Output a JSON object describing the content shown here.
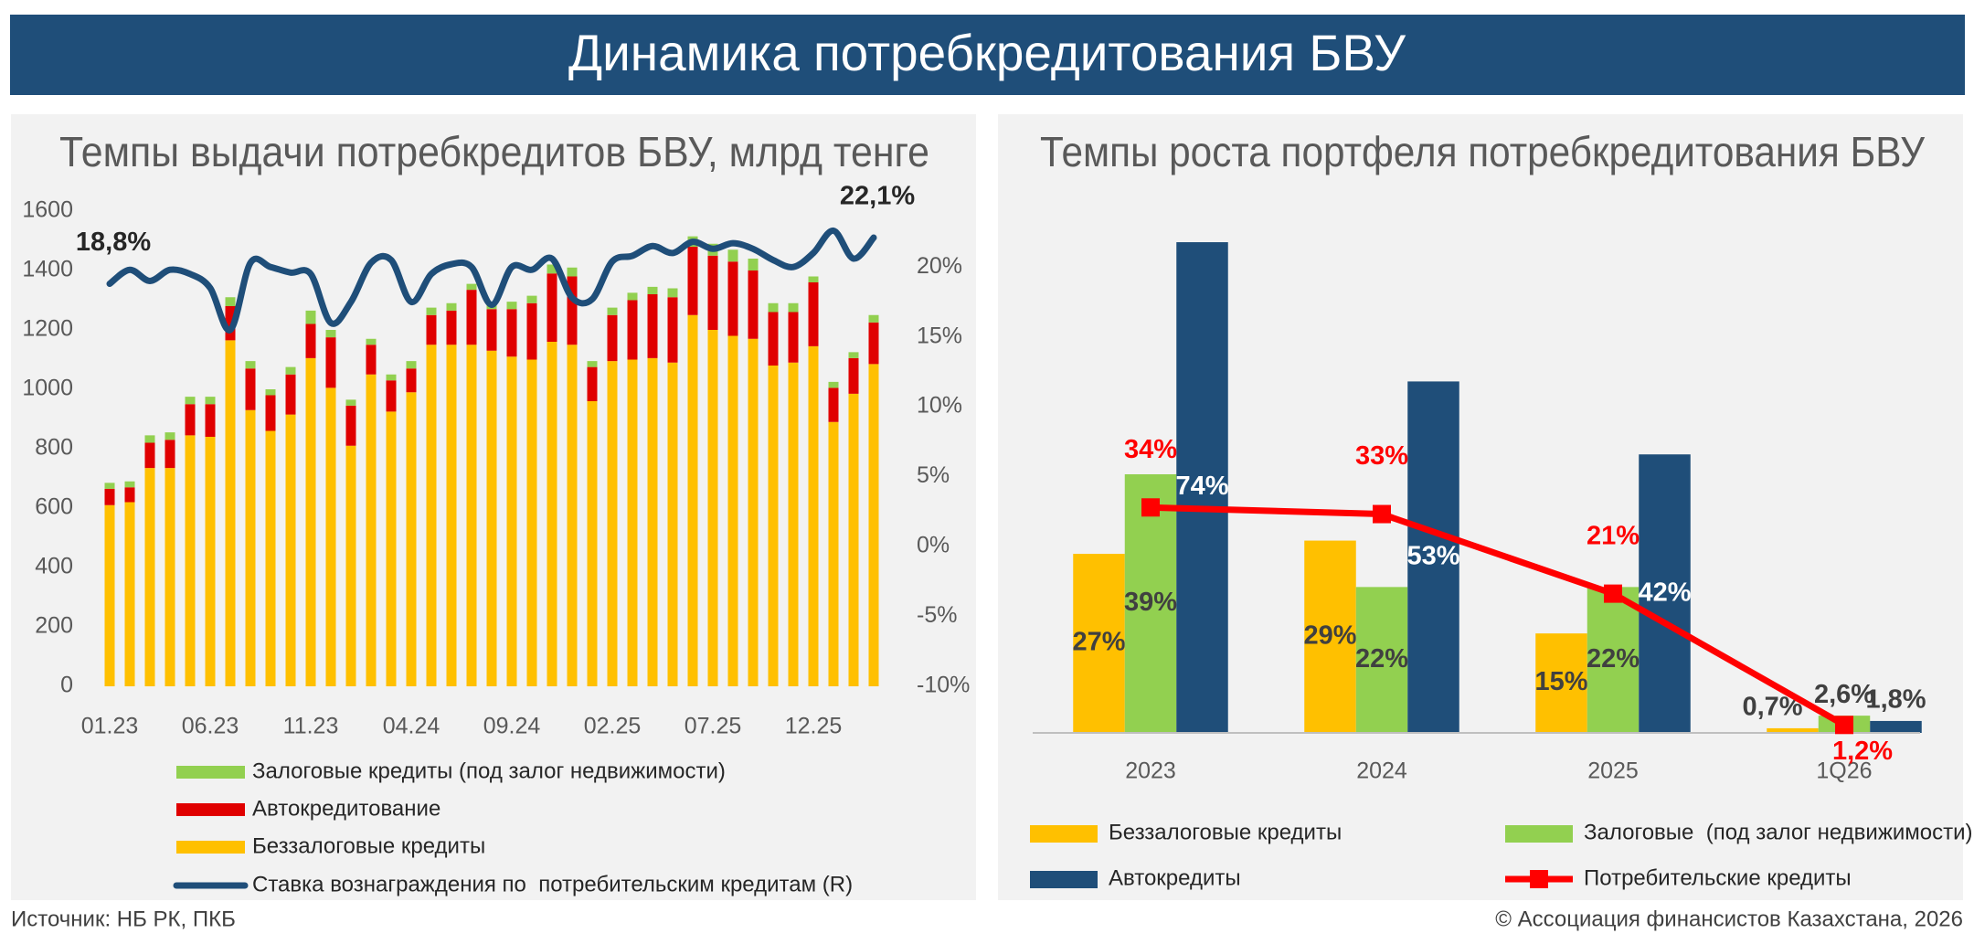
{
  "title": "Динамика потребкредитования БВУ",
  "source": "Источник: НБ РК, ПКБ",
  "credit": "© Ассоциация финансистов Казахстана, 2026",
  "chart_data": [
    {
      "type": "bar",
      "stacked": true,
      "title": "Темпы выдачи потребкредитов БВУ, млрд тенге",
      "categories": [
        "01.23",
        null,
        null,
        null,
        null,
        "06.23",
        null,
        null,
        null,
        null,
        "11.23",
        null,
        null,
        null,
        null,
        "04.24",
        null,
        null,
        null,
        null,
        "09.24",
        null,
        null,
        null,
        null,
        "02.25",
        null,
        null,
        null,
        null,
        "07.25",
        null,
        null,
        null,
        null,
        "12.25",
        null,
        null,
        null
      ],
      "ylim": [
        0,
        1600
      ],
      "yticks": [
        0,
        200,
        400,
        600,
        800,
        1000,
        1200,
        1400,
        1600
      ],
      "y2lim": [
        -10,
        24
      ],
      "y2ticks": [
        {
          "value": -10,
          "label": "-10%"
        },
        {
          "value": -5,
          "label": "-5%"
        },
        {
          "value": 0,
          "label": "0%"
        },
        {
          "value": 5,
          "label": "5%"
        },
        {
          "value": 10,
          "label": "10%"
        },
        {
          "value": 15,
          "label": "15%"
        },
        {
          "value": 20,
          "label": "20%"
        }
      ],
      "grid": false,
      "series": [
        {
          "name": "Залоговые кредиты (под залог недвижимости)",
          "color": "#92d050",
          "values": [
            20,
            20,
            25,
            25,
            25,
            25,
            30,
            25,
            20,
            25,
            45,
            25,
            20,
            20,
            20,
            25,
            25,
            25,
            20,
            25,
            25,
            25,
            30,
            30,
            20,
            25,
            25,
            25,
            30,
            35,
            40,
            40,
            40,
            30,
            30,
            20,
            20,
            20,
            25
          ]
        },
        {
          "name": "Автокредитование",
          "color": "#e00000",
          "values": [
            55,
            50,
            85,
            95,
            105,
            110,
            115,
            140,
            120,
            135,
            115,
            170,
            135,
            100,
            105,
            80,
            100,
            115,
            185,
            140,
            160,
            190,
            230,
            230,
            115,
            155,
            200,
            215,
            220,
            230,
            250,
            250,
            230,
            180,
            170,
            215,
            115,
            120,
            140
          ]
        },
        {
          "name": "Беззалоговые кредиты",
          "color": "#ffc000",
          "values": [
            610,
            620,
            735,
            735,
            845,
            840,
            1165,
            930,
            860,
            915,
            1105,
            1005,
            810,
            1050,
            925,
            990,
            1150,
            1150,
            1150,
            1130,
            1110,
            1100,
            1160,
            1150,
            960,
            1095,
            1100,
            1105,
            1090,
            1250,
            1200,
            1180,
            1170,
            1080,
            1090,
            1145,
            890,
            985,
            1085
          ]
        },
        {
          "name": "Ставка вознаграждения по  потребительским кредитам (R)",
          "color": "#1f4e79",
          "type": "line",
          "axis": "y2",
          "values": [
            18.8,
            19.8,
            19.0,
            19.8,
            19.5,
            18.5,
            15.5,
            20.3,
            20.0,
            19.6,
            19.5,
            16.0,
            17.5,
            20.3,
            20.5,
            17.5,
            19.5,
            20.2,
            20.0,
            17.3,
            20.0,
            19.8,
            20.6,
            17.8,
            17.7,
            20.4,
            20.8,
            21.5,
            21.0,
            21.8,
            21.3,
            21.7,
            21.3,
            20.5,
            20.0,
            21.0,
            22.6,
            20.6,
            22.1
          ],
          "value_labels": [
            "18,8%",
            null,
            null,
            null,
            null,
            null,
            null,
            null,
            null,
            null,
            null,
            null,
            null,
            null,
            null,
            null,
            null,
            null,
            null,
            null,
            null,
            null,
            null,
            null,
            null,
            null,
            null,
            null,
            null,
            null,
            null,
            null,
            null,
            null,
            null,
            null,
            null,
            null,
            "22,1%"
          ]
        }
      ]
    },
    {
      "type": "bar",
      "stacked": false,
      "title": "Темпы роста портфеля потребкредитования БВУ",
      "categories": [
        "2023",
        "2024",
        "2025",
        "1Q26"
      ],
      "ylim": [
        0,
        78
      ],
      "series": [
        {
          "name": "Беззалоговые кредиты",
          "color": "#ffc000",
          "values": [
            27,
            29,
            15,
            0.7
          ],
          "value_labels": [
            "27%",
            "29%",
            "15%",
            "0,7%"
          ]
        },
        {
          "name": "Залоговые  (под залог недвижимости)",
          "color": "#92d050",
          "values": [
            39,
            22,
            22,
            2.6
          ],
          "value_labels": [
            "39%",
            "22%",
            "22%",
            "2,6%"
          ]
        },
        {
          "name": "Автокредиты",
          "color": "#1f4e79",
          "values": [
            74,
            53,
            42,
            1.8
          ],
          "value_labels": [
            "74%",
            "53%",
            "42%",
            "1,8%"
          ]
        },
        {
          "name": "Потребительские кредиты",
          "color": "#ff0000",
          "type": "line",
          "values": [
            34,
            33,
            21,
            1.2
          ],
          "value_labels": [
            "34%",
            "33%",
            "21%",
            "1,2%"
          ]
        }
      ]
    }
  ]
}
